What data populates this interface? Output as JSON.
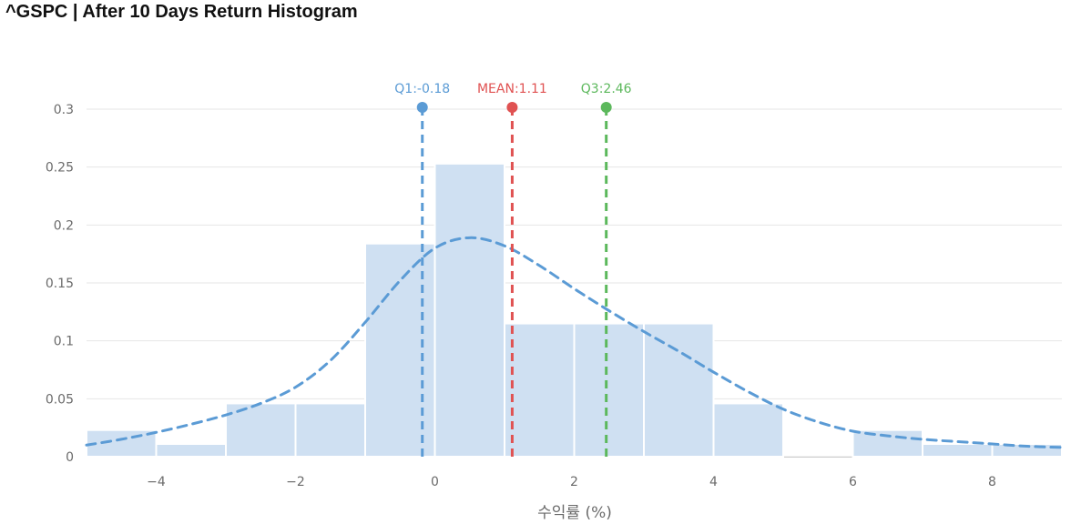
{
  "page_title": "^GSPC | After 10 Days Return Histogram",
  "colors": {
    "bar_fill": "#cfe0f2",
    "bar_stroke": "#ffffff",
    "kde_line": "#5b9bd5",
    "grid": "#e6e6e6",
    "q1": "#5b9bd5",
    "mean": "#e05252",
    "q3": "#5cb85c"
  },
  "chart_data": {
    "type": "bar",
    "subtype": "histogram",
    "title": "^GSPC | After 10 Days Return Histogram",
    "xlabel": "수익률 (%)",
    "ylabel": "",
    "xlim": [
      -5,
      9
    ],
    "ylim": [
      0,
      0.31
    ],
    "grid": true,
    "x_ticks": [
      -4,
      -2,
      0,
      2,
      4,
      6,
      8
    ],
    "x_tick_labels": [
      "−4",
      "−2",
      "0",
      "2",
      "4",
      "6",
      "8"
    ],
    "y_ticks": [
      0,
      0.05,
      0.1,
      0.15,
      0.2,
      0.25,
      0.3
    ],
    "y_tick_labels": [
      "0",
      "0.05",
      "0.1",
      "0.15",
      "0.2",
      "0.25",
      "0.3"
    ],
    "bins": [
      {
        "x0": -5,
        "x1": -4,
        "density": 0.023
      },
      {
        "x0": -4,
        "x1": -3,
        "density": 0.011
      },
      {
        "x0": -3,
        "x1": -2,
        "density": 0.046
      },
      {
        "x0": -2,
        "x1": -1,
        "density": 0.046
      },
      {
        "x0": -1,
        "x1": 0,
        "density": 0.184
      },
      {
        "x0": 0,
        "x1": 1,
        "density": 0.253
      },
      {
        "x0": 1,
        "x1": 2,
        "density": 0.115
      },
      {
        "x0": 2,
        "x1": 3,
        "density": 0.115
      },
      {
        "x0": 3,
        "x1": 4,
        "density": 0.115
      },
      {
        "x0": 4,
        "x1": 5,
        "density": 0.046
      },
      {
        "x0": 5,
        "x1": 6,
        "density": 0.0
      },
      {
        "x0": 6,
        "x1": 7,
        "density": 0.023
      },
      {
        "x0": 7,
        "x1": 8,
        "density": 0.011
      },
      {
        "x0": 8,
        "x1": 9,
        "density": 0.011
      }
    ],
    "kde": {
      "x": [
        -5,
        -4.5,
        -4,
        -3.5,
        -3,
        -2.5,
        -2,
        -1.5,
        -1,
        -0.5,
        0,
        0.5,
        1,
        1.5,
        2,
        2.5,
        3,
        3.5,
        4,
        4.5,
        5,
        5.5,
        6,
        6.5,
        7,
        7.5,
        8,
        8.5,
        9
      ],
      "y": [
        0.01,
        0.015,
        0.021,
        0.028,
        0.036,
        0.046,
        0.06,
        0.083,
        0.116,
        0.152,
        0.18,
        0.189,
        0.182,
        0.165,
        0.145,
        0.126,
        0.108,
        0.091,
        0.073,
        0.056,
        0.041,
        0.03,
        0.022,
        0.018,
        0.015,
        0.013,
        0.011,
        0.009,
        0.008
      ]
    },
    "markers": [
      {
        "name": "Q1",
        "label": "Q1:-0.18",
        "value": -0.18,
        "color_key": "q1"
      },
      {
        "name": "MEAN",
        "label": "MEAN:1.11",
        "value": 1.11,
        "color_key": "mean"
      },
      {
        "name": "Q3",
        "label": "Q3:2.46",
        "value": 2.46,
        "color_key": "q3"
      }
    ]
  }
}
